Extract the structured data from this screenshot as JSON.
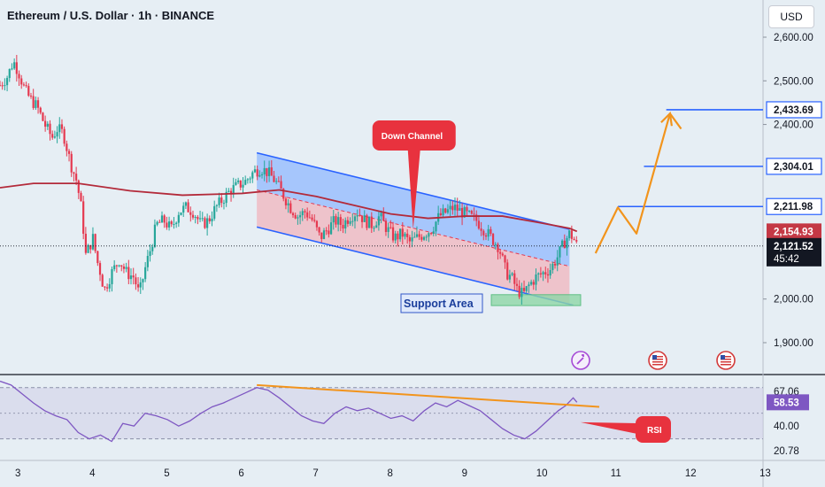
{
  "header": {
    "title": "Ethereum / U.S. Dollar · 1h · BINANCE",
    "currency": "USD"
  },
  "colors": {
    "background": "#e6eef4",
    "up": "#26a69a",
    "down": "#e53950",
    "channel_blue": "#2962ff",
    "channel_fill_upper": "#90b8ff",
    "channel_fill_lower": "#f0b8c0",
    "ma_line": "#b32a3a",
    "projection": "#f2941c",
    "support_fill": "#8ed6a6",
    "rsi_line": "#7e57c2",
    "rsi_band": "#cfcfe8",
    "callout": "#e8323e"
  },
  "chart_data": [
    {
      "type": "candlestick",
      "title": "Ethereum / U.S. Dollar · 1h · BINANCE",
      "x_axis": {
        "ticks": [
          "3",
          "4",
          "5",
          "6",
          "7",
          "8",
          "9",
          "10",
          "11",
          "12",
          "13"
        ],
        "tick_positions": [
          3,
          4,
          5,
          6,
          7,
          8,
          9,
          10,
          11,
          12,
          13
        ],
        "range": [
          2.75,
          13.0
        ]
      },
      "y_axis": {
        "ticks": [
          "2,600.00",
          "2,500.00",
          "2,400.00",
          "2,000.00",
          "1,900.00"
        ],
        "tick_values": [
          2600,
          2500,
          2400,
          2000,
          1900
        ],
        "range": [
          1860,
          2640
        ]
      },
      "path_points": [
        [
          2.75,
          2490
        ],
        [
          2.85,
          2510
        ],
        [
          2.93,
          2545
        ],
        [
          3.0,
          2520
        ],
        [
          3.08,
          2480
        ],
        [
          3.15,
          2460
        ],
        [
          3.25,
          2440
        ],
        [
          3.35,
          2400
        ],
        [
          3.45,
          2370
        ],
        [
          3.52,
          2390
        ],
        [
          3.6,
          2380
        ],
        [
          3.7,
          2310
        ],
        [
          3.78,
          2270
        ],
        [
          3.85,
          2200
        ],
        [
          3.9,
          2100
        ],
        [
          4.0,
          2140
        ],
        [
          4.05,
          2090
        ],
        [
          4.1,
          2060
        ],
        [
          4.15,
          2020
        ],
        [
          4.25,
          2060
        ],
        [
          4.35,
          2090
        ],
        [
          4.45,
          2060
        ],
        [
          4.55,
          2050
        ],
        [
          4.62,
          2010
        ],
        [
          4.7,
          2070
        ],
        [
          4.78,
          2120
        ],
        [
          4.85,
          2170
        ],
        [
          4.95,
          2180
        ],
        [
          5.05,
          2160
        ],
        [
          5.15,
          2200
        ],
        [
          5.25,
          2210
        ],
        [
          5.35,
          2200
        ],
        [
          5.45,
          2170
        ],
        [
          5.55,
          2180
        ],
        [
          5.65,
          2210
        ],
        [
          5.75,
          2230
        ],
        [
          5.85,
          2250
        ],
        [
          5.95,
          2260
        ],
        [
          6.05,
          2270
        ],
        [
          6.15,
          2290
        ],
        [
          6.25,
          2300
        ],
        [
          6.35,
          2290
        ],
        [
          6.45,
          2270
        ],
        [
          6.55,
          2240
        ],
        [
          6.65,
          2210
        ],
        [
          6.75,
          2190
        ],
        [
          6.85,
          2200
        ],
        [
          6.95,
          2180
        ],
        [
          7.05,
          2140
        ],
        [
          7.15,
          2160
        ],
        [
          7.25,
          2180
        ],
        [
          7.35,
          2170
        ],
        [
          7.45,
          2190
        ],
        [
          7.55,
          2200
        ],
        [
          7.65,
          2180
        ],
        [
          7.75,
          2170
        ],
        [
          7.85,
          2190
        ],
        [
          7.95,
          2160
        ],
        [
          8.05,
          2140
        ],
        [
          8.15,
          2150
        ],
        [
          8.25,
          2130
        ],
        [
          8.35,
          2140
        ],
        [
          8.45,
          2150
        ],
        [
          8.55,
          2160
        ],
        [
          8.65,
          2190
        ],
        [
          8.75,
          2200
        ],
        [
          8.85,
          2210
        ],
        [
          8.95,
          2200
        ],
        [
          9.05,
          2190
        ],
        [
          9.15,
          2180
        ],
        [
          9.25,
          2160
        ],
        [
          9.35,
          2140
        ],
        [
          9.45,
          2120
        ],
        [
          9.55,
          2060
        ],
        [
          9.62,
          2050
        ],
        [
          9.7,
          2020
        ],
        [
          9.78,
          2010
        ],
        [
          9.85,
          2030
        ],
        [
          9.95,
          2050
        ],
        [
          10.05,
          2060
        ],
        [
          10.15,
          2070
        ],
        [
          10.25,
          2100
        ],
        [
          10.33,
          2130
        ],
        [
          10.4,
          2150
        ],
        [
          10.45,
          2140
        ],
        [
          10.5,
          2121.52
        ]
      ],
      "moving_average": [
        [
          2.75,
          2255
        ],
        [
          3.2,
          2265
        ],
        [
          3.8,
          2265
        ],
        [
          4.5,
          2248
        ],
        [
          5.2,
          2238
        ],
        [
          6.0,
          2242
        ],
        [
          6.5,
          2250
        ],
        [
          7.0,
          2235
        ],
        [
          7.5,
          2215
        ],
        [
          8.0,
          2195
        ],
        [
          8.5,
          2185
        ],
        [
          9.0,
          2190
        ],
        [
          9.5,
          2190
        ],
        [
          10.0,
          2175
        ],
        [
          10.4,
          2162
        ],
        [
          10.5,
          2155
        ]
      ],
      "channel": {
        "upper": [
          [
            6.2,
            2335
          ],
          [
            10.4,
            2160
          ]
        ],
        "lower": [
          [
            6.2,
            2165
          ],
          [
            10.4,
            1990
          ]
        ],
        "mid": [
          [
            6.2,
            2250
          ],
          [
            10.4,
            2075
          ]
        ]
      },
      "support_area": {
        "x_range": [
          9.35,
          10.55
        ],
        "y_range": [
          1985,
          2010
        ]
      },
      "projection": [
        [
          10.75,
          2105
        ],
        [
          11.05,
          2210
        ],
        [
          11.3,
          2150
        ],
        [
          11.75,
          2425
        ],
        [
          11.9,
          2390
        ]
      ],
      "levels": [
        {
          "value": 2433.69,
          "label": "2,433.69",
          "from_x": 11.7
        },
        {
          "value": 2304.01,
          "label": "2,304.01",
          "from_x": 11.4
        },
        {
          "value": 2211.98,
          "label": "2,211.98",
          "from_x": 11.05
        }
      ],
      "price_labels": [
        {
          "value": 2154.93,
          "label": "2,154.93",
          "style": "ma"
        },
        {
          "value": 2121.52,
          "label": "2,121.52",
          "sub": "45:42",
          "style": "last"
        }
      ],
      "annotations": [
        {
          "text": "Down Channel",
          "x": 8.3,
          "y": 2395,
          "points_to": [
            8.3,
            2160
          ]
        },
        {
          "text": "Support Area",
          "x": 8.9,
          "y": 1995
        }
      ]
    },
    {
      "type": "line",
      "name": "RSI",
      "y_axis": {
        "ticks": [
          "67.06",
          "58.53",
          "40.00",
          "20.78"
        ],
        "tick_values": [
          67.06,
          58.53,
          40.0,
          20.78
        ],
        "range": [
          14,
          86
        ]
      },
      "band": [
        30,
        70
      ],
      "values": [
        [
          2.75,
          75
        ],
        [
          2.9,
          72
        ],
        [
          3.05,
          65
        ],
        [
          3.2,
          58
        ],
        [
          3.35,
          52
        ],
        [
          3.5,
          48
        ],
        [
          3.65,
          45
        ],
        [
          3.8,
          35
        ],
        [
          3.95,
          30
        ],
        [
          4.1,
          33
        ],
        [
          4.25,
          28
        ],
        [
          4.4,
          42
        ],
        [
          4.55,
          40
        ],
        [
          4.7,
          50
        ],
        [
          4.85,
          48
        ],
        [
          5.0,
          45
        ],
        [
          5.15,
          40
        ],
        [
          5.3,
          44
        ],
        [
          5.45,
          50
        ],
        [
          5.6,
          55
        ],
        [
          5.75,
          58
        ],
        [
          5.9,
          62
        ],
        [
          6.05,
          66
        ],
        [
          6.2,
          70
        ],
        [
          6.35,
          68
        ],
        [
          6.5,
          62
        ],
        [
          6.65,
          55
        ],
        [
          6.8,
          48
        ],
        [
          6.95,
          44
        ],
        [
          7.1,
          42
        ],
        [
          7.25,
          50
        ],
        [
          7.4,
          55
        ],
        [
          7.55,
          52
        ],
        [
          7.7,
          54
        ],
        [
          7.85,
          50
        ],
        [
          8.0,
          46
        ],
        [
          8.15,
          48
        ],
        [
          8.3,
          44
        ],
        [
          8.45,
          52
        ],
        [
          8.6,
          58
        ],
        [
          8.75,
          55
        ],
        [
          8.9,
          60
        ],
        [
          9.05,
          56
        ],
        [
          9.2,
          52
        ],
        [
          9.35,
          45
        ],
        [
          9.5,
          38
        ],
        [
          9.65,
          33
        ],
        [
          9.8,
          30
        ],
        [
          9.95,
          36
        ],
        [
          10.1,
          44
        ],
        [
          10.25,
          52
        ],
        [
          10.35,
          56
        ],
        [
          10.45,
          62
        ],
        [
          10.5,
          58.53
        ]
      ],
      "trendline": [
        [
          6.2,
          72
        ],
        [
          10.8,
          55
        ]
      ],
      "annotations": [
        {
          "text": "RSI",
          "points_to": [
            10.5,
            43
          ]
        }
      ]
    }
  ],
  "toolbar_icons": [
    {
      "name": "magic-icon",
      "x_label": "10.5"
    },
    {
      "name": "us-flag-icon-1",
      "x_label": "11.6"
    },
    {
      "name": "us-flag-icon-2",
      "x_label": "12.5"
    }
  ]
}
